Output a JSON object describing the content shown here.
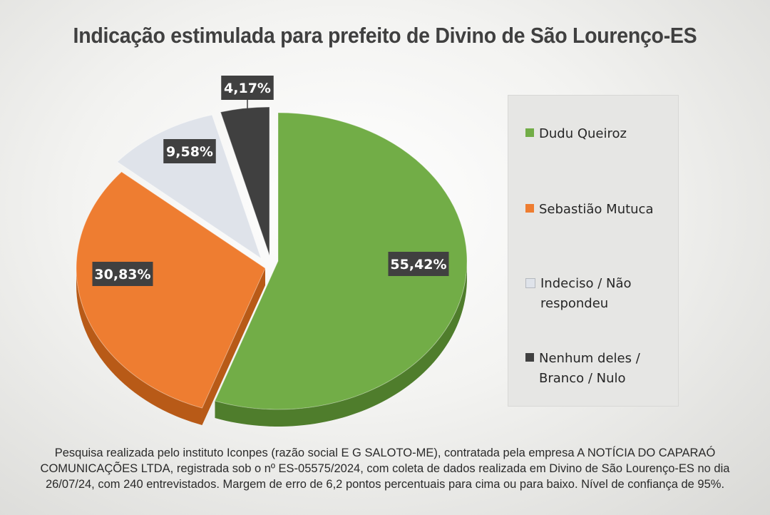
{
  "title": "Indicação estimulada para prefeito de Divino de São Lourenço-ES",
  "chart_data": {
    "type": "pie",
    "title": "Indicação estimulada para prefeito de Divino de São Lourenço-ES",
    "slices": [
      {
        "label": "Dudu Queiroz",
        "value": 55.42,
        "display": "55,42%",
        "color": "#72ad47",
        "side_color": "#4f7d2c"
      },
      {
        "label": "Sebastião Mutuca",
        "value": 30.83,
        "display": "30,83%",
        "color": "#ee7d31",
        "side_color": "#b85a17"
      },
      {
        "label": "Indeciso / Não respondeu",
        "value": 9.58,
        "display": "9,58%",
        "color": "#dfe3ea",
        "side_color": "#a9adb3"
      },
      {
        "label": "Nenhum deles / Branco / Nulo",
        "value": 4.17,
        "display": "4,17%",
        "color": "#404040",
        "side_color": "#222222"
      }
    ],
    "legend_position": "right"
  },
  "legend": {
    "items": [
      {
        "lines": [
          "Dudu Queiroz"
        ],
        "color": "#72ad47"
      },
      {
        "lines": [
          "Sebastião Mutuca"
        ],
        "color": "#ee7d31"
      },
      {
        "lines": [
          "Indeciso / Não",
          "respondeu"
        ],
        "color": "#dfe3ea"
      },
      {
        "lines": [
          "Nenhum deles /",
          "Branco / Nulo"
        ],
        "color": "#404040"
      }
    ]
  },
  "footer": {
    "line1": "Pesquisa realizada pelo instituto Iconpes (razão social E G SALOTO-ME), contratada pela empresa A NOTÍCIA DO CAPARAÓ",
    "line2": "COMUNICAÇÕES LTDA, registrada sob o nº ES-05575/2024, com coleta de dados realizada em Divino de São Lourenço-ES no dia",
    "line3": "26/07/24, com 240 entrevistados. Margem de erro de 6,2 pontos percentuais para cima ou para baixo. Nível de confiança de 95%."
  }
}
